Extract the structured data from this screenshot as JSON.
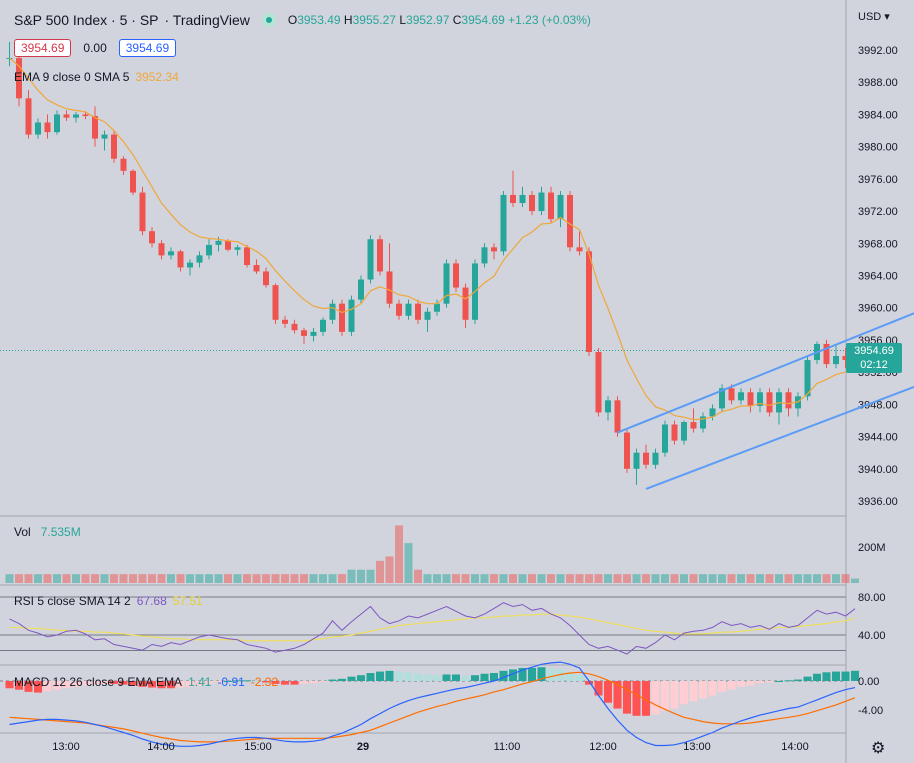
{
  "header": {
    "symbol": "S&P 500 Index · 5 · SP",
    "source": "· TradingView",
    "ohlc": {
      "o_label": "O",
      "o": "3953.49",
      "h_label": "H",
      "h": "3955.27",
      "l_label": "L",
      "l": "3952.97",
      "c_label": "C",
      "c": "3954.69",
      "change": "+1.23 (+0.03%)"
    },
    "bid": "3954.69",
    "spread": "0.00",
    "ask": "3954.69"
  },
  "indicators": {
    "ema": {
      "label": "EMA 9 close 0 SMA 5",
      "value": "3952.34"
    },
    "vol": {
      "label": "Vol",
      "value": "7.535M"
    },
    "rsi": {
      "label": "RSI 5 close SMA 14 2",
      "value1": "67.68",
      "value2": "57.51"
    },
    "macd": {
      "label": "MACD 12 26 close 9 EMA EMA",
      "hist": "1.41",
      "macd": "-0.91",
      "signal": "-2.32"
    }
  },
  "axis": {
    "currency": "USD",
    "last_price": "3954.69",
    "countdown": "02:12"
  },
  "colors": {
    "up": "#26a69a",
    "down": "#ef5350",
    "ema": "#f0a73a",
    "channel": "#5b9cf6",
    "rsi": "#7e57c2",
    "rsi_ma": "#f5e04a",
    "macd": "#2962ff",
    "signal": "#ff6d00"
  },
  "chart_data": {
    "type": "candlestick",
    "x_ticks": [
      "13:00",
      "14:00",
      "15:00",
      "29",
      "11:00",
      "12:00",
      "13:00",
      "14:00"
    ],
    "y_ticks": [
      3936,
      3940,
      3944,
      3948,
      3952,
      3956,
      3960,
      3964,
      3968,
      3972,
      3976,
      3980,
      3984,
      3988,
      3992
    ],
    "y_tick_labels": [
      "3936.00",
      "3940.00",
      "3944.00",
      "3948.00",
      "3952.00",
      "3956.00",
      "3960.00",
      "3964.00",
      "3968.00",
      "3972.00",
      "3976.00",
      "3980.00",
      "3984.00",
      "3988.00",
      "3992.00"
    ],
    "ylim": [
      3934,
      3996
    ],
    "candles": [
      {
        "o": 3991,
        "h": 3993,
        "l": 3990,
        "c": 3991
      },
      {
        "o": 3991,
        "h": 3992.5,
        "l": 3985,
        "c": 3986
      },
      {
        "o": 3986,
        "h": 3987,
        "l": 3981,
        "c": 3981.5
      },
      {
        "o": 3981.5,
        "h": 3983.5,
        "l": 3981,
        "c": 3983
      },
      {
        "o": 3983,
        "h": 3984,
        "l": 3981,
        "c": 3981.8
      },
      {
        "o": 3981.8,
        "h": 3984.5,
        "l": 3981.5,
        "c": 3984
      },
      {
        "o": 3984,
        "h": 3984.5,
        "l": 3983.2,
        "c": 3983.6
      },
      {
        "o": 3983.6,
        "h": 3984.3,
        "l": 3983,
        "c": 3984
      },
      {
        "o": 3984,
        "h": 3984.4,
        "l": 3983.4,
        "c": 3983.8
      },
      {
        "o": 3983.8,
        "h": 3985,
        "l": 3980,
        "c": 3981
      },
      {
        "o": 3981,
        "h": 3982,
        "l": 3979.5,
        "c": 3981.5
      },
      {
        "o": 3981.5,
        "h": 3982,
        "l": 3978,
        "c": 3978.5
      },
      {
        "o": 3978.5,
        "h": 3978.8,
        "l": 3976.5,
        "c": 3977
      },
      {
        "o": 3977,
        "h": 3977.2,
        "l": 3974,
        "c": 3974.3
      },
      {
        "o": 3974.3,
        "h": 3975,
        "l": 3969,
        "c": 3969.5
      },
      {
        "o": 3969.5,
        "h": 3970,
        "l": 3967.5,
        "c": 3968
      },
      {
        "o": 3968,
        "h": 3968.4,
        "l": 3966,
        "c": 3966.5
      },
      {
        "o": 3966.5,
        "h": 3967.5,
        "l": 3966,
        "c": 3967
      },
      {
        "o": 3967,
        "h": 3967.2,
        "l": 3964.5,
        "c": 3965
      },
      {
        "o": 3965,
        "h": 3966,
        "l": 3964,
        "c": 3965.6
      },
      {
        "o": 3965.6,
        "h": 3967,
        "l": 3965,
        "c": 3966.5
      },
      {
        "o": 3966.5,
        "h": 3968.5,
        "l": 3966,
        "c": 3967.8
      },
      {
        "o": 3967.8,
        "h": 3968.8,
        "l": 3967,
        "c": 3968.3
      },
      {
        "o": 3968.3,
        "h": 3968.5,
        "l": 3967,
        "c": 3967.2
      },
      {
        "o": 3967.2,
        "h": 3967.8,
        "l": 3966.5,
        "c": 3967.5
      },
      {
        "o": 3967.5,
        "h": 3967.8,
        "l": 3965,
        "c": 3965.3
      },
      {
        "o": 3965.3,
        "h": 3966,
        "l": 3964.2,
        "c": 3964.5
      },
      {
        "o": 3964.5,
        "h": 3965,
        "l": 3962.5,
        "c": 3962.8
      },
      {
        "o": 3962.8,
        "h": 3963,
        "l": 3958,
        "c": 3958.5
      },
      {
        "o": 3958.5,
        "h": 3959,
        "l": 3957.5,
        "c": 3958
      },
      {
        "o": 3958,
        "h": 3958.5,
        "l": 3956.8,
        "c": 3957.2
      },
      {
        "o": 3957.2,
        "h": 3957.5,
        "l": 3955.5,
        "c": 3956.5
      },
      {
        "o": 3956.5,
        "h": 3957.5,
        "l": 3955.8,
        "c": 3957
      },
      {
        "o": 3957,
        "h": 3958.8,
        "l": 3956.5,
        "c": 3958.5
      },
      {
        "o": 3958.5,
        "h": 3961,
        "l": 3958,
        "c": 3960.5
      },
      {
        "o": 3960.5,
        "h": 3961,
        "l": 3956.5,
        "c": 3957
      },
      {
        "o": 3957,
        "h": 3961.5,
        "l": 3956.5,
        "c": 3961
      },
      {
        "o": 3961,
        "h": 3964,
        "l": 3960.5,
        "c": 3963.5
      },
      {
        "o": 3963.5,
        "h": 3969,
        "l": 3963,
        "c": 3968.5
      },
      {
        "o": 3968.5,
        "h": 3969,
        "l": 3964,
        "c": 3964.5
      },
      {
        "o": 3964.5,
        "h": 3968,
        "l": 3960,
        "c": 3960.5
      },
      {
        "o": 3960.5,
        "h": 3961,
        "l": 3958.5,
        "c": 3959
      },
      {
        "o": 3959,
        "h": 3961,
        "l": 3958.5,
        "c": 3960.5
      },
      {
        "o": 3960.5,
        "h": 3961,
        "l": 3958,
        "c": 3958.5
      },
      {
        "o": 3958.5,
        "h": 3960,
        "l": 3957,
        "c": 3959.5
      },
      {
        "o": 3959.5,
        "h": 3961,
        "l": 3959,
        "c": 3960.5
      },
      {
        "o": 3960.5,
        "h": 3966,
        "l": 3960,
        "c": 3965.5
      },
      {
        "o": 3965.5,
        "h": 3966,
        "l": 3962,
        "c": 3962.5
      },
      {
        "o": 3962.5,
        "h": 3963,
        "l": 3957.5,
        "c": 3958.5
      },
      {
        "o": 3958.5,
        "h": 3966,
        "l": 3958,
        "c": 3965.5
      },
      {
        "o": 3965.5,
        "h": 3968,
        "l": 3965,
        "c": 3967.5
      },
      {
        "o": 3967.5,
        "h": 3968,
        "l": 3966,
        "c": 3967
      },
      {
        "o": 3967,
        "h": 3974.5,
        "l": 3966.5,
        "c": 3974
      },
      {
        "o": 3974,
        "h": 3977,
        "l": 3972.5,
        "c": 3973
      },
      {
        "o": 3973,
        "h": 3975,
        "l": 3972.5,
        "c": 3974
      },
      {
        "o": 3974,
        "h": 3974.5,
        "l": 3971.5,
        "c": 3972
      },
      {
        "o": 3972,
        "h": 3975,
        "l": 3971.5,
        "c": 3974.3
      },
      {
        "o": 3974.3,
        "h": 3975,
        "l": 3970.5,
        "c": 3971
      },
      {
        "o": 3971,
        "h": 3974.5,
        "l": 3970,
        "c": 3974
      },
      {
        "o": 3974,
        "h": 3974.5,
        "l": 3967,
        "c": 3967.5
      },
      {
        "o": 3967.5,
        "h": 3969.5,
        "l": 3966.5,
        "c": 3967
      },
      {
        "o": 3967,
        "h": 3967.5,
        "l": 3954,
        "c": 3954.5
      },
      {
        "o": 3954.5,
        "h": 3955,
        "l": 3946.5,
        "c": 3947
      },
      {
        "o": 3947,
        "h": 3949,
        "l": 3946,
        "c": 3948.5
      },
      {
        "o": 3948.5,
        "h": 3949,
        "l": 3944,
        "c": 3944.5
      },
      {
        "o": 3944.5,
        "h": 3945,
        "l": 3939.5,
        "c": 3940
      },
      {
        "o": 3940,
        "h": 3942.5,
        "l": 3938,
        "c": 3942
      },
      {
        "o": 3942,
        "h": 3943,
        "l": 3940,
        "c": 3940.5
      },
      {
        "o": 3940.5,
        "h": 3942.5,
        "l": 3940,
        "c": 3942
      },
      {
        "o": 3942,
        "h": 3946,
        "l": 3941.5,
        "c": 3945.5
      },
      {
        "o": 3945.5,
        "h": 3946,
        "l": 3943,
        "c": 3943.5
      },
      {
        "o": 3943.5,
        "h": 3946,
        "l": 3943,
        "c": 3945.8
      },
      {
        "o": 3945.8,
        "h": 3947.5,
        "l": 3944.5,
        "c": 3945
      },
      {
        "o": 3945,
        "h": 3947,
        "l": 3944.5,
        "c": 3946.5
      },
      {
        "o": 3946.5,
        "h": 3948,
        "l": 3946,
        "c": 3947.5
      },
      {
        "o": 3947.5,
        "h": 3950.5,
        "l": 3947,
        "c": 3950
      },
      {
        "o": 3950,
        "h": 3950.5,
        "l": 3948,
        "c": 3948.5
      },
      {
        "o": 3948.5,
        "h": 3950,
        "l": 3948,
        "c": 3949.5
      },
      {
        "o": 3949.5,
        "h": 3950,
        "l": 3947,
        "c": 3947.8
      },
      {
        "o": 3947.8,
        "h": 3950,
        "l": 3947,
        "c": 3949.5
      },
      {
        "o": 3949.5,
        "h": 3950,
        "l": 3946.5,
        "c": 3947
      },
      {
        "o": 3947,
        "h": 3950,
        "l": 3945.5,
        "c": 3949.5
      },
      {
        "o": 3949.5,
        "h": 3950,
        "l": 3946.5,
        "c": 3947.5
      },
      {
        "o": 3947.5,
        "h": 3949.5,
        "l": 3946.5,
        "c": 3949
      },
      {
        "o": 3949,
        "h": 3954,
        "l": 3948.5,
        "c": 3953.5
      },
      {
        "o": 3953.5,
        "h": 3955.8,
        "l": 3953,
        "c": 3955.5
      },
      {
        "o": 3955.5,
        "h": 3956,
        "l": 3952.5,
        "c": 3953
      },
      {
        "o": 3953,
        "h": 3955.5,
        "l": 3952.5,
        "c": 3954
      },
      {
        "o": 3954,
        "h": 3955,
        "l": 3952.5,
        "c": 3953.5
      },
      {
        "o": 3953.49,
        "h": 3955.27,
        "l": 3952.97,
        "c": 3954.69
      }
    ],
    "ema": [
      3991,
      3990,
      3988.5,
      3987,
      3985.8,
      3985.2,
      3984.7,
      3984.5,
      3984.3,
      3983.6,
      3983.1,
      3982,
      3980.6,
      3979,
      3977,
      3975,
      3973,
      3971.6,
      3970.3,
      3969.4,
      3968.8,
      3968.6,
      3968.5,
      3968.3,
      3968.2,
      3967.6,
      3967,
      3966.1,
      3964.6,
      3963.3,
      3962.1,
      3961,
      3960.2,
      3959.9,
      3960,
      3959.4,
      3959.8,
      3960.5,
      3962.1,
      3962.6,
      3962.2,
      3961.6,
      3961.4,
      3960.8,
      3960.5,
      3960.5,
      3961.5,
      3961.7,
      3961.1,
      3962,
      3963.1,
      3963.9,
      3965.9,
      3967.3,
      3968.7,
      3969.4,
      3970.4,
      3970.5,
      3971.2,
      3970.4,
      3969.7,
      3966.7,
      3962.8,
      3959.9,
      3956.8,
      3953.5,
      3951.2,
      3949.1,
      3947.7,
      3947.3,
      3946.6,
      3946.4,
      3946.1,
      3946.2,
      3946.4,
      3947.1,
      3947.4,
      3947.8,
      3947.8,
      3948.1,
      3947.9,
      3948.2,
      3948.1,
      3948.3,
      3949.3,
      3950.6,
      3951.1,
      3951.7,
      3952,
      3952.34
    ],
    "volume": [
      2,
      2,
      2,
      2,
      2,
      2,
      2,
      2,
      2,
      2,
      2,
      2,
      2,
      2,
      2,
      2,
      2,
      2,
      2,
      2,
      2,
      2,
      2,
      2,
      2,
      2,
      2,
      2,
      2,
      2,
      2,
      2,
      2,
      2,
      2,
      2,
      3,
      3,
      3,
      5,
      6,
      13,
      9,
      3,
      2,
      2,
      2,
      2,
      2,
      2,
      2,
      2,
      2,
      2,
      2,
      2,
      2,
      2,
      2,
      2,
      2,
      2,
      2,
      2,
      2,
      2,
      2,
      2,
      2,
      2,
      2,
      2,
      2,
      2,
      2,
      2,
      2,
      2,
      2,
      2,
      2,
      2,
      2,
      2,
      2,
      2,
      2,
      2,
      2,
      1
    ],
    "volume_tick": "200M",
    "rsi": [
      57,
      52,
      45,
      42,
      38,
      40,
      44,
      45,
      41,
      35,
      36,
      30,
      28,
      26,
      24,
      30,
      28,
      32,
      30,
      34,
      38,
      40,
      38,
      36,
      35,
      30,
      28,
      26,
      22,
      24,
      26,
      30,
      36,
      42,
      55,
      45,
      54,
      62,
      70,
      58,
      52,
      55,
      60,
      58,
      62,
      66,
      70,
      65,
      60,
      58,
      62,
      68,
      74,
      70,
      72,
      66,
      68,
      62,
      58,
      50,
      40,
      30,
      26,
      28,
      24,
      20,
      28,
      26,
      32,
      40,
      35,
      42,
      44,
      45,
      48,
      54,
      50,
      52,
      48,
      50,
      46,
      52,
      48,
      50,
      58,
      66,
      62,
      64,
      60,
      67.68
    ],
    "rsi_ma": [
      48,
      48,
      47,
      47,
      46,
      45,
      45,
      44,
      44,
      43,
      43,
      42,
      41,
      40,
      39,
      38,
      37,
      36,
      36,
      35,
      35,
      35,
      35,
      35,
      35,
      34,
      34,
      34,
      34,
      34,
      34,
      34,
      35,
      36,
      38,
      39,
      40,
      42,
      44,
      46,
      48,
      50,
      51,
      52,
      53,
      54,
      55,
      56,
      57,
      58,
      58,
      59,
      60,
      60,
      61,
      61,
      62,
      62,
      61,
      60,
      59,
      57,
      55,
      53,
      51,
      49,
      47,
      45,
      44,
      43,
      42,
      41,
      41,
      41,
      42,
      43,
      43,
      44,
      45,
      46,
      47,
      48,
      48,
      49,
      50,
      51,
      52,
      54,
      55,
      57.51
    ],
    "rsi_ticks": [
      40,
      80
    ],
    "rsi_tick_labels": [
      "40.00",
      "80.00"
    ],
    "macd_hist": [
      -1,
      -1.2,
      -1.5,
      -1.6,
      -1.4,
      -1.2,
      -1,
      -0.8,
      -0.6,
      -0.5,
      -0.4,
      -0.4,
      -0.5,
      -0.6,
      -0.8,
      -0.9,
      -1,
      -1,
      -0.9,
      -0.8,
      -0.6,
      -0.4,
      -0.2,
      0,
      0.1,
      0.1,
      0,
      -0.2,
      -0.4,
      -0.5,
      -0.5,
      -0.4,
      -0.3,
      -0.1,
      0.2,
      0.3,
      0.6,
      0.8,
      1.1,
      1.3,
      1.4,
      1.3,
      1.2,
      1,
      0.9,
      0.8,
      0.9,
      0.9,
      0.7,
      0.8,
      1,
      1.1,
      1.4,
      1.6,
      1.8,
      1.8,
      1.9,
      1.7,
      1.6,
      1.2,
      0.8,
      -0.5,
      -2,
      -3,
      -3.8,
      -4.5,
      -4.8,
      -4.8,
      -4.6,
      -4.1,
      -3.8,
      -3.2,
      -2.8,
      -2.4,
      -2,
      -1.5,
      -1.2,
      -0.8,
      -0.6,
      -0.3,
      -0.2,
      0,
      0.1,
      0.2,
      0.6,
      1,
      1.2,
      1.3,
      1.3,
      1.41
    ],
    "macd_line": [
      -6,
      -5.8,
      -5.6,
      -5.4,
      -5.3,
      -5.3,
      -5.4,
      -5.5,
      -5.7,
      -6,
      -6.3,
      -6.7,
      -7.1,
      -7.5,
      -8,
      -8.4,
      -8.7,
      -8.9,
      -9,
      -9,
      -8.9,
      -8.7,
      -8.4,
      -8.1,
      -7.9,
      -7.8,
      -7.8,
      -7.9,
      -8.1,
      -8.3,
      -8.4,
      -8.4,
      -8.3,
      -8.1,
      -7.6,
      -7.2,
      -6.6,
      -6,
      -5.2,
      -4.5,
      -3.8,
      -3.2,
      -2.7,
      -2.3,
      -2,
      -1.7,
      -1.4,
      -1.1,
      -0.9,
      -0.6,
      -0.3,
      0,
      0.5,
      1,
      1.5,
      1.9,
      2.3,
      2.5,
      2.6,
      2.3,
      1.8,
      0,
      -2,
      -3.8,
      -5.4,
      -6.8,
      -7.8,
      -8.5,
      -8.9,
      -8.9,
      -8.8,
      -8.5,
      -8.1,
      -7.6,
      -7.1,
      -6.5,
      -6,
      -5.5,
      -5.1,
      -4.7,
      -4.4,
      -4.1,
      -3.8,
      -3.6,
      -3.1,
      -2.6,
      -2.1,
      -1.6,
      -1.2,
      -0.91
    ],
    "macd_signal": [
      -5,
      -5.1,
      -5.2,
      -5.3,
      -5.4,
      -5.5,
      -5.6,
      -5.7,
      -5.8,
      -6,
      -6.2,
      -6.4,
      -6.6,
      -6.9,
      -7.2,
      -7.5,
      -7.8,
      -8,
      -8.2,
      -8.3,
      -8.4,
      -8.4,
      -8.4,
      -8.3,
      -8.2,
      -8.1,
      -8,
      -7.9,
      -7.9,
      -7.9,
      -7.9,
      -7.9,
      -7.9,
      -7.9,
      -7.8,
      -7.6,
      -7.4,
      -7.1,
      -6.8,
      -6.3,
      -5.8,
      -5.3,
      -4.8,
      -4.3,
      -3.9,
      -3.5,
      -3.2,
      -2.8,
      -2.5,
      -2.2,
      -1.9,
      -1.5,
      -1.2,
      -0.8,
      -0.4,
      -0.1,
      0.3,
      0.6,
      0.9,
      1.1,
      1.2,
      1,
      0.6,
      0.1,
      -0.5,
      -1.2,
      -1.9,
      -2.6,
      -3.3,
      -3.9,
      -4.5,
      -5,
      -5.3,
      -5.6,
      -5.8,
      -5.9,
      -5.9,
      -5.9,
      -5.8,
      -5.6,
      -5.4,
      -5.2,
      -5,
      -4.8,
      -4.5,
      -4.1,
      -3.7,
      -3.3,
      -2.8,
      -2.32
    ],
    "macd_ticks": [
      -4,
      0
    ],
    "macd_tick_labels": [
      "-4.00",
      "0.00"
    ],
    "channel": {
      "upper": [
        {
          "bar": 64,
          "price": 3944.5
        },
        {
          "bar": 103,
          "price": 3963
        }
      ],
      "lower": [
        {
          "bar": 67,
          "price": 3937.5
        },
        {
          "bar": 106,
          "price": 3955
        }
      ]
    },
    "last_price": 3954.69
  }
}
